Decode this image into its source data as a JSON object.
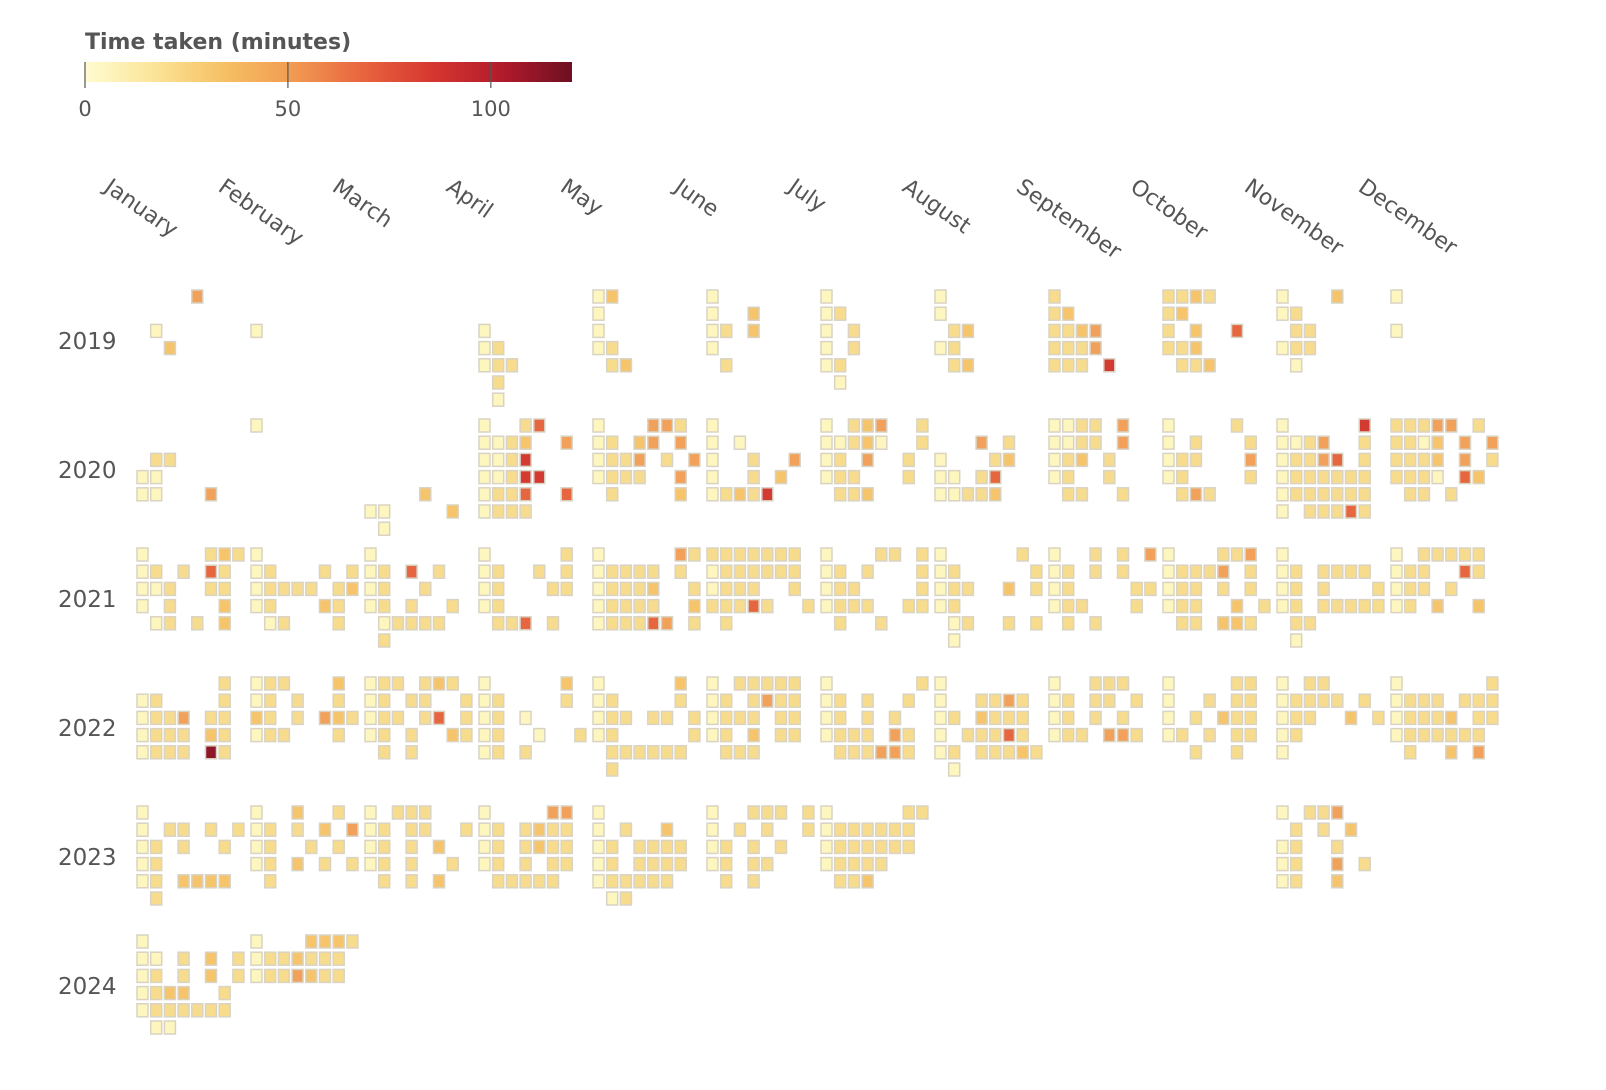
{
  "chart_data": {
    "type": "heatmap",
    "title": "",
    "colorbar": {
      "title": "Time taken (minutes)",
      "min": 0,
      "max": 120,
      "ticks": [
        0,
        50,
        100
      ],
      "colors": [
        "#fffcd2",
        "#fbe497",
        "#f6c064",
        "#f19a52",
        "#e8643e",
        "#d63630",
        "#b11b2c",
        "#6e0f22"
      ]
    },
    "months": [
      "January",
      "February",
      "March",
      "April",
      "May",
      "June",
      "July",
      "August",
      "September",
      "October",
      "November",
      "December"
    ],
    "years": [
      "2019",
      "2020",
      "2021",
      "2022",
      "2023",
      "2024"
    ],
    "cell_colors": {
      "empty": "#ffffff",
      "stroke": "#d9d3c4"
    },
    "grid": {
      "2019": {
        "January": [
          "....4..",
          "......",
          ".1.....",
          "..3....",
          "......",
          "......",
          "......"
        ],
        "February": [
          "......",
          ".......",
          "1......",
          ".......",
          "......",
          "......",
          "......"
        ],
        "April": [
          "......",
          "......",
          "1.....",
          "12.....",
          "122....",
          ".2.....",
          ".1....."
        ],
        "May": [
          "13.....",
          "1......",
          "1......",
          "12.....",
          ".23....",
          "......",
          "......"
        ],
        "June": [
          "1......",
          "1..3...",
          "12.3...",
          "1......",
          ".2.....",
          "......",
          "......"
        ],
        "July": [
          "1......",
          "12.....",
          "1.2....",
          "1.2....",
          "12.....",
          ".1.....",
          "......"
        ],
        "August": [
          "1......",
          "1......",
          ".23....",
          "12.....",
          ".23....",
          "......",
          "......"
        ],
        "September": [
          "2......",
          "23.....",
          "2234...",
          "2224...",
          "222.6..",
          "......",
          "......"
        ],
        "October": [
          "2232...",
          "23.....",
          "2.3..5.",
          "223....",
          ".223...",
          "......",
          "......"
        ],
        "November": [
          "1...3..",
          "12.....",
          ".22....",
          "122....",
          ".1.....",
          "......",
          "......"
        ],
        "December": [
          "1......",
          "......",
          "1......",
          "......",
          "......",
          "......",
          "......"
        ]
      },
      "2020": {
        "January": [
          "......",
          ".......",
          ".22....",
          "11.....",
          "11...4.",
          "......",
          "......"
        ],
        "February": [
          "1......",
          "......",
          "......",
          "......",
          "......",
          "......",
          "......"
        ],
        "March": [
          "......",
          "......",
          "......",
          "......",
          "....3..",
          "11....3",
          ".1....."
        ],
        "April": [
          "1..25..",
          "1123..4",
          "1126...",
          "11266.",
          "1225..5.",
          "1222...",
          "......"
        ],
        "May": [
          "1...442",
          "12.34.4",
          "1224.2.4",
          "1222..4",
          ".2....3",
          "......",
          "......"
        ],
        "June": [
          "1......",
          "1.1....",
          "1..2..4",
          "1..2.3..1",
          "12326.",
          "......",
          "......"
        ],
        "July": [
          "1.234..2",
          "11231..2",
          "12.4..2",
          "122...2",
          ".223...",
          "......",
          "......"
        ],
        "August": [
          "......",
          "...4.2..",
          "1...23",
          "11.25.",
          "11223.",
          "......",
          "......"
        ],
        "September": [
          "1122.4",
          "1122.4",
          "123.2",
          "12..2",
          ".22..2",
          "......",
          "......"
        ],
        "October": [
          "1....2",
          "1.2...2",
          "122...4",
          "12....2",
          ".242...",
          "......",
          "......"
        ],
        "November": [
          "1.....6",
          "1124..2",
          "12245.2",
          "1222222",
          "1222222",
          "1.22252",
          "......"
        ],
        "December": [
          "22244.2",
          "2213.4.4",
          "2223.4.2",
          "2221.53",
          ".22.2..",
          "......",
          "......"
        ]
      },
      "2021": {
        "January": [
          "1....232",
          "12.2.52",
          "112..22",
          "1.2...3",
          ".12.2.3",
          "......",
          "......"
        ],
        "February": [
          "1......",
          "12...2.2",
          "12222.23",
          "12...32",
          ".12...2",
          "......",
          "......"
        ],
        "March": [
          "1......",
          "12.5.2",
          "12..2..",
          "12.2..2",
          ".12222",
          ".2.....",
          "......"
        ],
        "April": [
          "1.....2",
          "12..2.2",
          "12...22.2",
          "12.....",
          ".225.2.",
          "......",
          "......"
        ],
        "May": [
          "1.....42",
          "12222.2",
          "12223..2",
          "12222..3",
          "122254.2",
          "......",
          "......"
        ],
        "June": [
          "2222222",
          "1222222.2",
          "1222..2",
          "22252..2",
          ".2.....",
          "......",
          "......"
        ],
        "July": [
          "1...22.2",
          "12.2...2",
          "122....2",
          "1222..22",
          ".2..2..",
          "......",
          "......"
        ],
        "August": [
          "1.....2",
          "12.....2",
          "122..3.2",
          "12......",
          ".12..2.2",
          ".1.....",
          "......"
        ],
        "September": [
          "1..2.2.4",
          "12.2.2.",
          "12....22",
          "122...2",
          ".2.2...",
          "......",
          "......"
        ],
        "October": [
          "1...224",
          "12224.2",
          "122.2.2",
          "122..3.2",
          ".22.332",
          "......",
          "......"
        ],
        "November": [
          "1......",
          "12.2222.2",
          "12.2...2",
          "12.22222",
          ".22.....",
          ".1.....",
          "......"
        ],
        "December": [
          "1.22222",
          "122..52.3",
          "122.2...",
          "12.3..3",
          "......",
          "......",
          "......"
        ]
      },
      "2022": {
        "January": [
          "......2",
          "12....2",
          "1224.22",
          "1222.32",
          "1222.72",
          "......",
          "......"
        ],
        "February": [
          "122...3",
          "12.2..2",
          "32.2.432",
          "122...2",
          "......",
          "......",
          "......"
        ],
        "March": [
          "122.232",
          "12.22..2",
          "122.25.2",
          "12.2..32",
          ".2.2...",
          "......",
          "......"
        ],
        "April": [
          "1.....3",
          "12....2",
          "12.1...",
          "12..1..2",
          "12.2...",
          "......",
          "......"
        ],
        "May": [
          "1.....3",
          "12....2",
          "122.22.2",
          "12.....2",
          ".222222",
          ".2.....",
          "......"
        ],
        "June": [
          "1.22222",
          "12.2422",
          "1222.22",
          "12.3.22",
          ".222..",
          "......",
          "......"
        ],
        "July": [
          "1......2",
          "12.2..2",
          "12.2.2..",
          "1222.42",
          ".222442",
          "......",
          "......"
        ],
        "August": [
          "1......",
          "1..2242",
          "12.3222",
          "1.22252",
          "12.22232",
          ".1.....",
          "......"
        ],
        "September": [
          "1..222",
          "12.22.2",
          "12.2.2",
          "122.442",
          "......",
          "......",
          "......"
        ],
        "October": [
          "1....22",
          "1..2.22",
          "1.2.322",
          "12.2.22",
          "..2..2",
          "......",
          "......"
        ],
        "November": [
          "1.22...",
          "12222.2",
          "122..3.2.2",
          "12.....",
          "1......",
          "......",
          "......"
        ],
        "December": [
          "1......22",
          "1222.222",
          "12223.22",
          "1222222",
          ".2..3.4",
          "......",
          "......"
        ]
      },
      "2023": {
        "January": [
          "1......",
          "1.22.2.2",
          "12.2..2",
          "12.....",
          "12.3333",
          ".2.....",
          "......"
        ],
        "February": [
          "1..3..2",
          "12.2.3.4",
          "12..2.2",
          "12.3.2.2",
          ".2.....",
          "......",
          "......"
        ],
        "March": [
          "1.222..",
          "12.22..2",
          "12.2.3.",
          "12.2..2",
          ".2.2.3",
          "......",
          "......"
        ],
        "April": [
          "1....44",
          "12.2322",
          "12.2322",
          "12.2.22",
          ".22222",
          "......",
          "......"
        ],
        "May": [
          "1......",
          "1.2..3.",
          "12.2222",
          "12.2222",
          "122222",
          ".12....",
          "......"
        ],
        "June": [
          "1..222.2",
          "1.2.2..2",
          "12.2.2..",
          "12.22...2",
          ".2.2..",
          "......",
          "......"
        ],
        "July": [
          "1.....22",
          "1222222",
          "1222222",
          "12222...",
          ".223....",
          "......",
          "......"
        ],
        "November": [
          "1.224..",
          ".2.2.3",
          "12..2.",
          "12..4.2",
          "12..3..",
          "......",
          "......"
        ]
      },
      "2024": {
        "January": [
          "1......",
          "11.2.3.2",
          "12.2.3.2",
          "1233..2",
          "1222222",
          ".11....",
          "......"
        ],
        "February": [
          "1...3332",
          "1223222",
          "1224322",
          "......",
          "......",
          "......",
          "......"
        ]
      }
    }
  }
}
